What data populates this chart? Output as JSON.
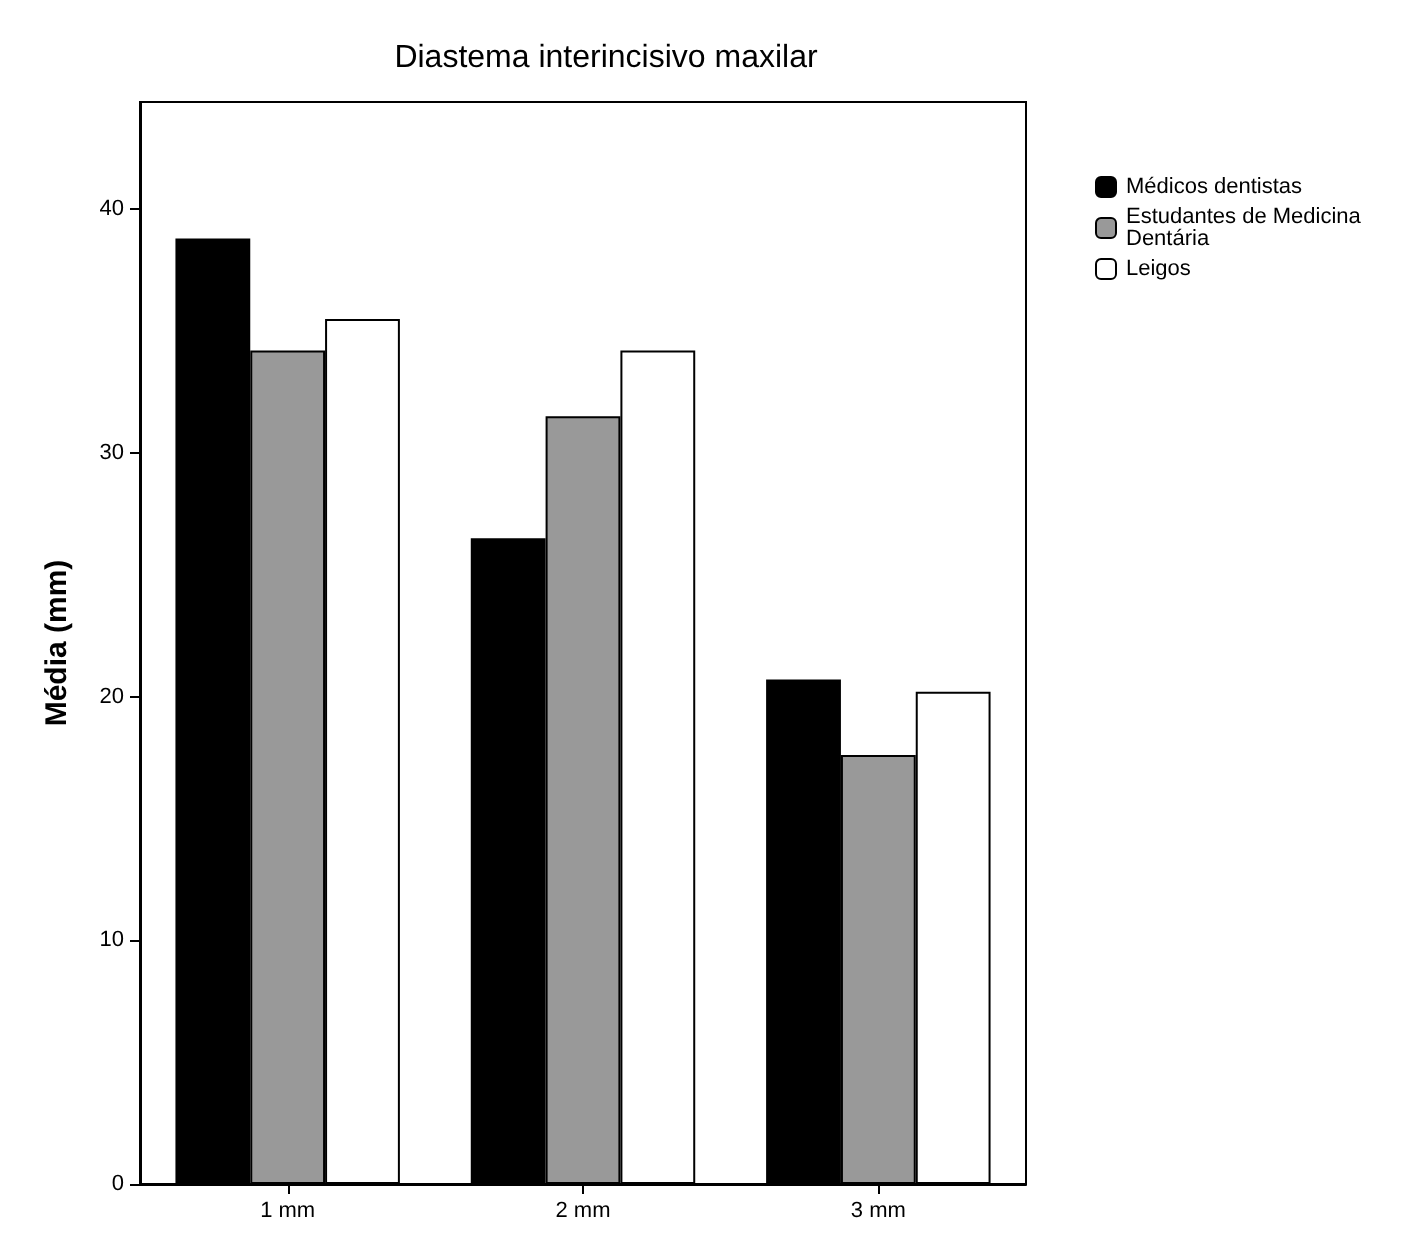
{
  "chart_data": {
    "type": "bar",
    "title": "Diastema interincisivo maxilar",
    "ylabel": "Média (mm)",
    "categories": [
      "1 mm",
      "2 mm",
      "3 mm"
    ],
    "series": [
      {
        "name": "Médicos dentistas",
        "color": "#000000",
        "values": [
          38.8,
          26.5,
          20.7
        ]
      },
      {
        "name": "Estudantes de Medicina Dentária",
        "color": "#999999",
        "values": [
          34.2,
          31.5,
          17.6
        ]
      },
      {
        "name": "Leigos",
        "color": "#ffffff",
        "values": [
          35.5,
          34.2,
          20.2
        ]
      }
    ],
    "ylim": [
      0,
      44.4
    ],
    "yticks": [
      0,
      10,
      20,
      30,
      40
    ],
    "grid": false,
    "legend": "top right"
  }
}
